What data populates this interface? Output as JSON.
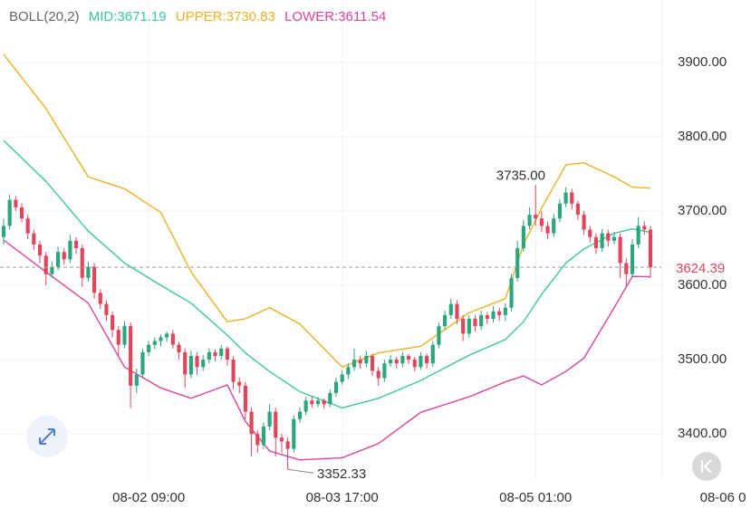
{
  "chart_data": {
    "type": "candlestick",
    "indicator": "BOLL(20,2)",
    "up_color": "#2aa57c",
    "down_color": "#e0455c",
    "ylim": [
      3338,
      3984
    ],
    "yticks": [
      {
        "value": 3400,
        "label": "3400.00"
      },
      {
        "value": 3500,
        "label": "3500.00"
      },
      {
        "value": 3600,
        "label": "3600.00"
      },
      {
        "value": 3700,
        "label": "3700.00"
      },
      {
        "value": 3800,
        "label": "3800.00"
      },
      {
        "value": 3900,
        "label": "3900.00"
      }
    ],
    "xlim": [
      -0.6,
      108.8
    ],
    "xticks": [
      {
        "value": 24,
        "label": "08-02 09:00"
      },
      {
        "value": 56,
        "label": "08-03 17:00"
      },
      {
        "value": 88,
        "label": "08-05 01:00"
      },
      {
        "value": 119,
        "label": "08-06 0"
      }
    ],
    "grid": true,
    "candles": [
      [
        3665,
        3690,
        3655,
        3680
      ],
      [
        3680,
        3722,
        3675,
        3715
      ],
      [
        3715,
        3720,
        3700,
        3705
      ],
      [
        3705,
        3710,
        3685,
        3690
      ],
      [
        3690,
        3695,
        3662,
        3670
      ],
      [
        3670,
        3675,
        3648,
        3655
      ],
      [
        3655,
        3660,
        3630,
        3640
      ],
      [
        3640,
        3645,
        3600,
        3615
      ],
      [
        3615,
        3632,
        3610,
        3625
      ],
      [
        3625,
        3652,
        3620,
        3645
      ],
      [
        3645,
        3650,
        3628,
        3635
      ],
      [
        3635,
        3668,
        3630,
        3660
      ],
      [
        3660,
        3665,
        3642,
        3650
      ],
      [
        3650,
        3655,
        3598,
        3610
      ],
      [
        3610,
        3632,
        3605,
        3625
      ],
      [
        3625,
        3630,
        3582,
        3590
      ],
      [
        3590,
        3595,
        3568,
        3575
      ],
      [
        3575,
        3580,
        3552,
        3560
      ],
      [
        3560,
        3565,
        3530,
        3540
      ],
      [
        3540,
        3545,
        3505,
        3520
      ],
      [
        3520,
        3552,
        3515,
        3545
      ],
      [
        3545,
        3550,
        3435,
        3465
      ],
      [
        3465,
        3488,
        3455,
        3480
      ],
      [
        3480,
        3515,
        3475,
        3510
      ],
      [
        3510,
        3525,
        3505,
        3520
      ],
      [
        3520,
        3530,
        3514,
        3525
      ],
      [
        3525,
        3534,
        3518,
        3530
      ],
      [
        3530,
        3538,
        3524,
        3535
      ],
      [
        3535,
        3540,
        3515,
        3520
      ],
      [
        3520,
        3524,
        3500,
        3510
      ],
      [
        3510,
        3515,
        3462,
        3480
      ],
      [
        3480,
        3512,
        3475,
        3505
      ],
      [
        3505,
        3510,
        3480,
        3490
      ],
      [
        3490,
        3506,
        3485,
        3500
      ],
      [
        3500,
        3515,
        3495,
        3510
      ],
      [
        3510,
        3514,
        3498,
        3505
      ],
      [
        3505,
        3520,
        3500,
        3515
      ],
      [
        3515,
        3518,
        3492,
        3500
      ],
      [
        3500,
        3505,
        3460,
        3470
      ],
      [
        3470,
        3476,
        3455,
        3465
      ],
      [
        3465,
        3470,
        3420,
        3430
      ],
      [
        3430,
        3436,
        3370,
        3400
      ],
      [
        3400,
        3405,
        3375,
        3385
      ],
      [
        3385,
        3415,
        3380,
        3410
      ],
      [
        3410,
        3440,
        3405,
        3430
      ],
      [
        3430,
        3435,
        3370,
        3395
      ],
      [
        3395,
        3400,
        3375,
        3390
      ],
      [
        3390,
        3395,
        3352.33,
        3380
      ],
      [
        3380,
        3425,
        3375,
        3420
      ],
      [
        3420,
        3436,
        3415,
        3430
      ],
      [
        3430,
        3450,
        3425,
        3445
      ],
      [
        3445,
        3450,
        3435,
        3440
      ],
      [
        3440,
        3450,
        3436,
        3445
      ],
      [
        3445,
        3448,
        3434,
        3440
      ],
      [
        3440,
        3460,
        3436,
        3455
      ],
      [
        3455,
        3476,
        3450,
        3470
      ],
      [
        3470,
        3486,
        3466,
        3480
      ],
      [
        3480,
        3495,
        3474,
        3490
      ],
      [
        3490,
        3515,
        3485,
        3500
      ],
      [
        3500,
        3505,
        3488,
        3495
      ],
      [
        3495,
        3512,
        3490,
        3505
      ],
      [
        3505,
        3508,
        3478,
        3485
      ],
      [
        3485,
        3490,
        3465,
        3475
      ],
      [
        3475,
        3500,
        3470,
        3495
      ],
      [
        3495,
        3506,
        3490,
        3500
      ],
      [
        3500,
        3504,
        3488,
        3495
      ],
      [
        3495,
        3510,
        3490,
        3505
      ],
      [
        3505,
        3508,
        3494,
        3500
      ],
      [
        3500,
        3504,
        3484,
        3490
      ],
      [
        3490,
        3510,
        3486,
        3505
      ],
      [
        3505,
        3508,
        3488,
        3495
      ],
      [
        3495,
        3525,
        3490,
        3520
      ],
      [
        3520,
        3550,
        3515,
        3545
      ],
      [
        3545,
        3566,
        3540,
        3560
      ],
      [
        3560,
        3582,
        3555,
        3575
      ],
      [
        3575,
        3580,
        3548,
        3555
      ],
      [
        3555,
        3560,
        3525,
        3535
      ],
      [
        3535,
        3560,
        3530,
        3555
      ],
      [
        3555,
        3560,
        3538,
        3545
      ],
      [
        3545,
        3566,
        3540,
        3560
      ],
      [
        3560,
        3564,
        3548,
        3555
      ],
      [
        3555,
        3572,
        3550,
        3565
      ],
      [
        3565,
        3570,
        3552,
        3560
      ],
      [
        3560,
        3576,
        3552,
        3570
      ],
      [
        3570,
        3615,
        3565,
        3610
      ],
      [
        3610,
        3660,
        3605,
        3650
      ],
      [
        3650,
        3688,
        3645,
        3680
      ],
      [
        3680,
        3705,
        3675,
        3695
      ],
      [
        3695,
        3735,
        3680,
        3690
      ],
      [
        3690,
        3700,
        3672,
        3680
      ],
      [
        3680,
        3686,
        3662,
        3670
      ],
      [
        3670,
        3696,
        3665,
        3690
      ],
      [
        3690,
        3716,
        3685,
        3710
      ],
      [
        3710,
        3732,
        3705,
        3725
      ],
      [
        3725,
        3730,
        3702,
        3710
      ],
      [
        3710,
        3714,
        3688,
        3695
      ],
      [
        3695,
        3700,
        3668,
        3675
      ],
      [
        3675,
        3680,
        3658,
        3665
      ],
      [
        3665,
        3670,
        3642,
        3650
      ],
      [
        3650,
        3676,
        3645,
        3670
      ],
      [
        3670,
        3675,
        3652,
        3660
      ],
      [
        3660,
        3672,
        3655,
        3665
      ],
      [
        3665,
        3670,
        3610,
        3630
      ],
      [
        3630,
        3636,
        3598,
        3615
      ],
      [
        3615,
        3662,
        3610,
        3655
      ],
      [
        3655,
        3692,
        3650,
        3680
      ],
      [
        3680,
        3686,
        3668,
        3675
      ],
      [
        3675,
        3680,
        3610,
        3624.39
      ]
    ],
    "series": [
      {
        "name": "MID:3671.19",
        "color": "#3cc6a0",
        "x": [
          0,
          7,
          14,
          20,
          26,
          31,
          37,
          40,
          44,
          49,
          56,
          62,
          69,
          77,
          83,
          86,
          89,
          93,
          96,
          101,
          104,
          107
        ],
        "values": [
          3795,
          3740,
          3673,
          3630,
          3600,
          3576,
          3533,
          3509,
          3484,
          3457,
          3435,
          3448,
          3472,
          3506,
          3527,
          3551,
          3588,
          3630,
          3649,
          3670,
          3676,
          3671.19
        ]
      },
      {
        "name": "UPPER:3730.83",
        "color": "#e9b125",
        "x": [
          0,
          7,
          14,
          20,
          26,
          31,
          37,
          40,
          44,
          49,
          56,
          62,
          69,
          77,
          83,
          86,
          89,
          93,
          96,
          101,
          104,
          107
        ],
        "values": [
          3911,
          3838,
          3746,
          3730,
          3698,
          3618,
          3551,
          3555,
          3570,
          3548,
          3490,
          3509,
          3518,
          3563,
          3582,
          3655,
          3704,
          3762,
          3765,
          3746,
          3732,
          3730.83
        ]
      },
      {
        "name": "LOWER:3611.54",
        "color": "#d9439b",
        "x": [
          0,
          7,
          14,
          20,
          26,
          31,
          37,
          40,
          44,
          49,
          56,
          62,
          69,
          77,
          83,
          86,
          89,
          93,
          96,
          101,
          104,
          107
        ],
        "values": [
          3661,
          3618,
          3576,
          3490,
          3462,
          3448,
          3466,
          3417,
          3377,
          3365,
          3368,
          3387,
          3429,
          3450,
          3470,
          3478,
          3466,
          3484,
          3502,
          3570,
          3612,
          3611.54
        ]
      }
    ],
    "annotations": [
      {
        "value": 3735,
        "label": "3735.00"
      },
      {
        "value": 3352.33,
        "label": "3352.33"
      }
    ],
    "last_price": {
      "value": 3624.39,
      "label": "3624.39"
    }
  }
}
